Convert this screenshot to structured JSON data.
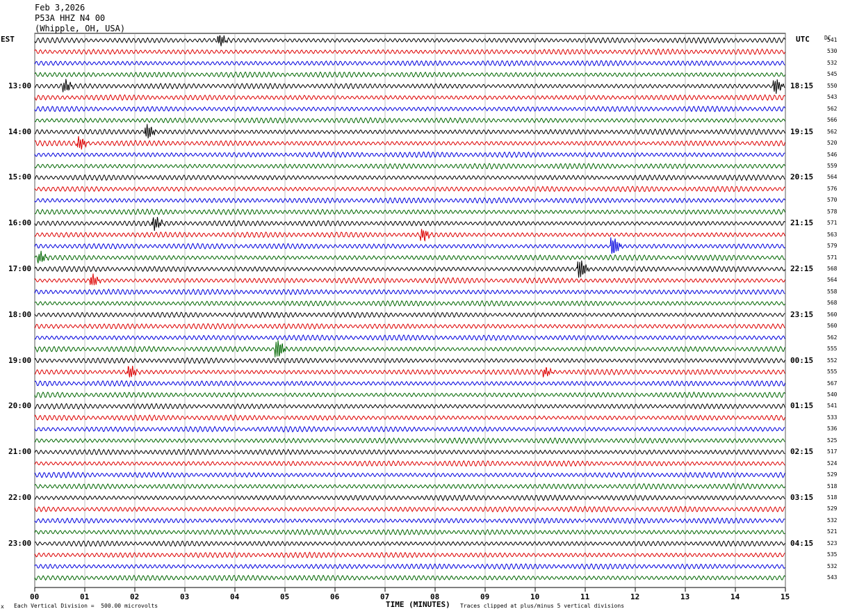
{
  "header": {
    "date": "Feb 3,2026",
    "station": "P53A HHZ N4 00",
    "location": "(Whipple, OH, USA)"
  },
  "left_tz": "EST",
  "right_tz": "UTC",
  "dc_header": "DC",
  "footer": {
    "scale": "Each Vertical Division =  500.00 microvolts",
    "clip": "Traces clipped at plus/minus 5 vertical divisions",
    "corner_mark": "x"
  },
  "trace_colors": [
    "#000000",
    "#dd0000",
    "#0000dd",
    "#006600"
  ],
  "chart_data": {
    "type": "line",
    "xlabel": "TIME (MINUTES)",
    "x_ticks": [
      "00",
      "01",
      "02",
      "03",
      "04",
      "05",
      "06",
      "07",
      "08",
      "09",
      "10",
      "11",
      "12",
      "13",
      "14",
      "15"
    ],
    "xlim": [
      0,
      15
    ],
    "grid": true,
    "left_time_labels": [
      "13:00",
      "14:00",
      "15:00",
      "16:00",
      "17:00",
      "18:00",
      "19:00",
      "20:00",
      "21:00",
      "22:00",
      "23:00"
    ],
    "right_time_labels": [
      "18:15",
      "19:15",
      "20:15",
      "21:15",
      "22:15",
      "23:15",
      "00:15",
      "01:15",
      "02:15",
      "03:15",
      "04:15"
    ],
    "dc_offsets": [
      541,
      530,
      532,
      545,
      550,
      543,
      562,
      566,
      562,
      520,
      546,
      559,
      564,
      576,
      570,
      578,
      571,
      563,
      579,
      571,
      568,
      564,
      558,
      568,
      560,
      560,
      562,
      555,
      552,
      555,
      567,
      540,
      541,
      533,
      536,
      525,
      517,
      524,
      529,
      518,
      518,
      529,
      532,
      521,
      523,
      535,
      532,
      543
    ],
    "events": [
      {
        "trace": 0,
        "minute": 3.7,
        "amp": 1.2
      },
      {
        "trace": 4,
        "minute": 0.6,
        "amp": 1.3
      },
      {
        "trace": 4,
        "minute": 14.8,
        "amp": 1.6
      },
      {
        "trace": 8,
        "minute": 2.25,
        "amp": 1.5
      },
      {
        "trace": 9,
        "minute": 0.9,
        "amp": 1.3
      },
      {
        "trace": 16,
        "minute": 2.4,
        "amp": 1.4
      },
      {
        "trace": 17,
        "minute": 7.75,
        "amp": 1.3
      },
      {
        "trace": 18,
        "minute": 11.55,
        "amp": 2.0
      },
      {
        "trace": 19,
        "minute": 0.1,
        "amp": 1.2
      },
      {
        "trace": 20,
        "minute": 10.9,
        "amp": 2.0
      },
      {
        "trace": 21,
        "minute": 1.15,
        "amp": 1.3
      },
      {
        "trace": 27,
        "minute": 4.85,
        "amp": 2.0
      },
      {
        "trace": 29,
        "minute": 1.9,
        "amp": 1.3
      },
      {
        "trace": 29,
        "minute": 10.2,
        "amp": 1.0
      }
    ]
  }
}
